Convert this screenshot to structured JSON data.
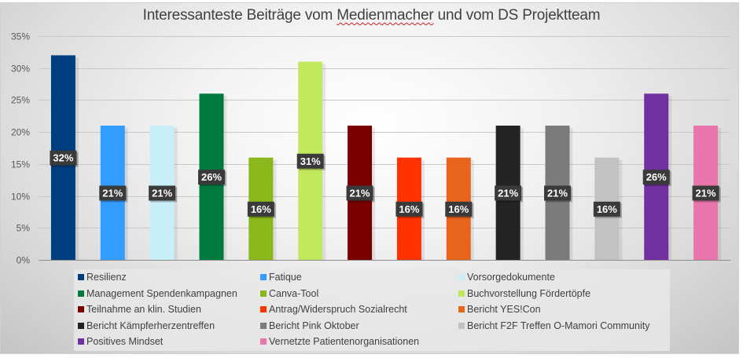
{
  "chart_data": {
    "type": "bar",
    "title_parts": [
      "Interessanteste Beiträge vom ",
      "Medienmacher",
      " und vom DS Projektteam"
    ],
    "title": "Interessanteste Beiträge vom Medienmacher und vom DS Projektteam",
    "xlabel": "",
    "ylabel": "",
    "ylim": [
      0,
      0.35
    ],
    "yticks": [
      0,
      0.05,
      0.1,
      0.15,
      0.2,
      0.25,
      0.3,
      0.35
    ],
    "ytick_labels": [
      "0%",
      "5%",
      "10%",
      "15%",
      "20%",
      "25%",
      "30%",
      "35%"
    ],
    "grid": true,
    "legend_position": "bottom",
    "series": [
      {
        "name": "Resilienz",
        "value": 0.32,
        "label": "32%",
        "color": "#003f7f"
      },
      {
        "name": "Fatique",
        "value": 0.21,
        "label": "21%",
        "color": "#339cff"
      },
      {
        "name": "Vorsorgedokumente",
        "value": 0.21,
        "label": "21%",
        "color": "#c8eefa"
      },
      {
        "name": "Management Spendenkampagnen",
        "value": 0.26,
        "label": "26%",
        "color": "#007a3d"
      },
      {
        "name": "Canva-Tool",
        "value": 0.16,
        "label": "16%",
        "color": "#8ab81a"
      },
      {
        "name": "Buchvorstellung Fördertöpfe",
        "value": 0.31,
        "label": "31%",
        "color": "#c2e85e"
      },
      {
        "name": "Teilnahme an klin. Studien",
        "value": 0.21,
        "label": "21%",
        "color": "#7a0000"
      },
      {
        "name": "Antrag/Widerspruch Sozialrecht",
        "value": 0.16,
        "label": "16%",
        "color": "#ff3300"
      },
      {
        "name": "Bericht YES!Con",
        "value": 0.16,
        "label": "16%",
        "color": "#e8641c"
      },
      {
        "name": "Bericht Kämpferherzentreffen",
        "value": 0.21,
        "label": "21%",
        "color": "#232323"
      },
      {
        "name": "Bericht Pink Oktober",
        "value": 0.21,
        "label": "21%",
        "color": "#7b7b7b"
      },
      {
        "name": "Bericht F2F Treffen O-Mamori Community",
        "value": 0.16,
        "label": "16%",
        "color": "#c2c2c2"
      },
      {
        "name": "Positives Mindset",
        "value": 0.26,
        "label": "26%",
        "color": "#7030a0"
      },
      {
        "name": "Vernetzte Patientenorganisationen",
        "value": 0.21,
        "label": "21%",
        "color": "#e875ab"
      }
    ]
  }
}
